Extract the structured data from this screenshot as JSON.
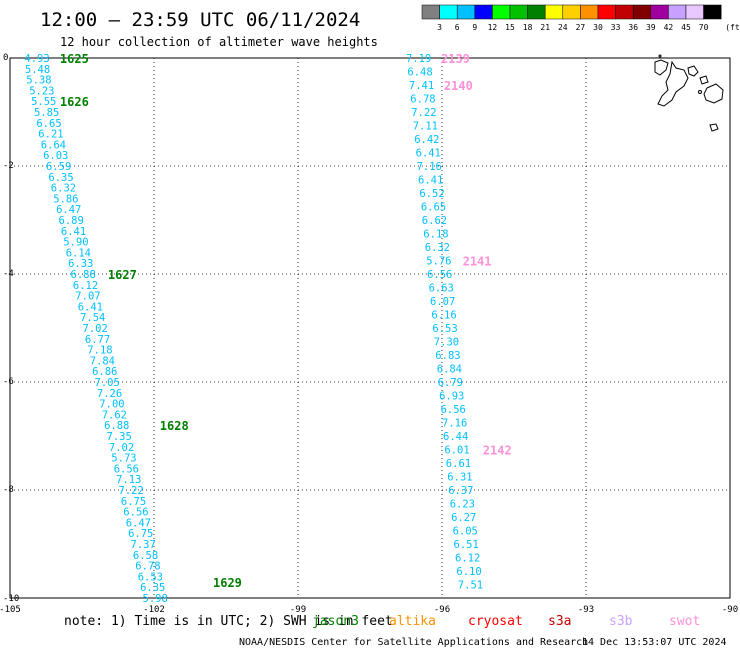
{
  "header": {
    "title": "12:00 – 23:59 UTC 06/11/2024",
    "subtitle": "12 hour collection of altimeter wave heights"
  },
  "legend": {
    "labels": [
      "3",
      "6",
      "9",
      "12",
      "15",
      "18",
      "21",
      "24",
      "27",
      "30",
      "33",
      "36",
      "39",
      "42",
      "45",
      "70"
    ],
    "unit": "(ft)",
    "colors": [
      "#808080",
      "#00ffff",
      "#00c0ff",
      "#0000ff",
      "#00ff00",
      "#00c000",
      "#008000",
      "#ffff00",
      "#ffd000",
      "#ff9000",
      "#ff0000",
      "#c00000",
      "#800000",
      "#a000a0",
      "#c8a0ff",
      "#e8c8ff",
      "#000000"
    ]
  },
  "chart_data": {
    "type": "scatter",
    "xlim": [
      -105,
      -90
    ],
    "ylim": [
      -10,
      0
    ],
    "xticks": [
      "-105",
      "-102",
      "-99",
      "-96",
      "-93",
      "-90"
    ],
    "yticks": [
      "0",
      "-2",
      "-4",
      "-6",
      "-8",
      "-10"
    ],
    "grid": true,
    "series": [
      {
        "track": "west",
        "color": "#00c0ff",
        "points": [
          {
            "lon": -104.7,
            "lat": 0.0,
            "swh": "4.93"
          },
          {
            "lon": -104.69,
            "lat": -0.2,
            "swh": "5.48"
          },
          {
            "lon": -104.66,
            "lat": -0.4,
            "swh": "5.38"
          },
          {
            "lon": -104.6,
            "lat": -0.6,
            "swh": "5.23"
          },
          {
            "lon": -104.56,
            "lat": -0.8,
            "swh": "5.55"
          },
          {
            "lon": -104.5,
            "lat": -1.0,
            "swh": "5.85"
          },
          {
            "lon": -104.45,
            "lat": -1.2,
            "swh": "6.65"
          },
          {
            "lon": -104.41,
            "lat": -1.4,
            "swh": "6.21"
          },
          {
            "lon": -104.36,
            "lat": -1.6,
            "swh": "6.64"
          },
          {
            "lon": -104.31,
            "lat": -1.8,
            "swh": "6.03"
          },
          {
            "lon": -104.25,
            "lat": -2.0,
            "swh": "6.59"
          },
          {
            "lon": -104.2,
            "lat": -2.2,
            "swh": "6.35"
          },
          {
            "lon": -104.15,
            "lat": -2.4,
            "swh": "6.32"
          },
          {
            "lon": -104.1,
            "lat": -2.6,
            "swh": "5.86"
          },
          {
            "lon": -104.04,
            "lat": -2.8,
            "swh": "6.47"
          },
          {
            "lon": -103.99,
            "lat": -3.0,
            "swh": "6.89"
          },
          {
            "lon": -103.94,
            "lat": -3.2,
            "swh": "6.41"
          },
          {
            "lon": -103.89,
            "lat": -3.4,
            "swh": "5.90"
          },
          {
            "lon": -103.84,
            "lat": -3.6,
            "swh": "6.14"
          },
          {
            "lon": -103.79,
            "lat": -3.8,
            "swh": "6.33"
          },
          {
            "lon": -103.74,
            "lat": -4.0,
            "swh": "6.88"
          },
          {
            "lon": -103.69,
            "lat": -4.2,
            "swh": "6.12"
          },
          {
            "lon": -103.64,
            "lat": -4.4,
            "swh": "7.07"
          },
          {
            "lon": -103.59,
            "lat": -4.6,
            "swh": "6.41"
          },
          {
            "lon": -103.54,
            "lat": -4.8,
            "swh": "7.54"
          },
          {
            "lon": -103.49,
            "lat": -5.0,
            "swh": "7.02"
          },
          {
            "lon": -103.44,
            "lat": -5.2,
            "swh": "6.77"
          },
          {
            "lon": -103.39,
            "lat": -5.4,
            "swh": "7.18"
          },
          {
            "lon": -103.34,
            "lat": -5.6,
            "swh": "7.84"
          },
          {
            "lon": -103.29,
            "lat": -5.8,
            "swh": "6.86"
          },
          {
            "lon": -103.24,
            "lat": -6.0,
            "swh": "7.05"
          },
          {
            "lon": -103.19,
            "lat": -6.2,
            "swh": "7.26"
          },
          {
            "lon": -103.14,
            "lat": -6.4,
            "swh": "7.00"
          },
          {
            "lon": -103.09,
            "lat": -6.6,
            "swh": "7.62"
          },
          {
            "lon": -103.04,
            "lat": -6.8,
            "swh": "6.88"
          },
          {
            "lon": -102.99,
            "lat": -7.0,
            "swh": "7.35"
          },
          {
            "lon": -102.94,
            "lat": -7.2,
            "swh": "7.02"
          },
          {
            "lon": -102.89,
            "lat": -7.4,
            "swh": "5.73"
          },
          {
            "lon": -102.84,
            "lat": -7.6,
            "swh": "6.56"
          },
          {
            "lon": -102.79,
            "lat": -7.8,
            "swh": "7.13"
          },
          {
            "lon": -102.74,
            "lat": -8.0,
            "swh": "7.22"
          },
          {
            "lon": -102.69,
            "lat": -8.2,
            "swh": "6.75"
          },
          {
            "lon": -102.64,
            "lat": -8.4,
            "swh": "6.56"
          },
          {
            "lon": -102.59,
            "lat": -8.6,
            "swh": "6.47"
          },
          {
            "lon": -102.54,
            "lat": -8.8,
            "swh": "6.75"
          },
          {
            "lon": -102.49,
            "lat": -9.0,
            "swh": "7.37"
          },
          {
            "lon": -102.44,
            "lat": -9.2,
            "swh": "6.58"
          },
          {
            "lon": -102.39,
            "lat": -9.4,
            "swh": "6.78"
          },
          {
            "lon": -102.34,
            "lat": -9.6,
            "swh": "6.53"
          },
          {
            "lon": -102.29,
            "lat": -9.8,
            "swh": "6.35"
          },
          {
            "lon": -102.24,
            "lat": -10.0,
            "swh": "5.98"
          }
        ]
      },
      {
        "track": "east",
        "color": "#00c0ff",
        "points": [
          {
            "lon": -96.75,
            "lat": 0.0,
            "swh": "7.19"
          },
          {
            "lon": -96.72,
            "lat": -0.25,
            "swh": "6.48"
          },
          {
            "lon": -96.69,
            "lat": -0.5,
            "swh": "7.41"
          },
          {
            "lon": -96.66,
            "lat": -0.75,
            "swh": "6.78"
          },
          {
            "lon": -96.64,
            "lat": -1.0,
            "swh": "7.22"
          },
          {
            "lon": -96.61,
            "lat": -1.25,
            "swh": "7.11"
          },
          {
            "lon": -96.58,
            "lat": -1.5,
            "swh": "6.42"
          },
          {
            "lon": -96.55,
            "lat": -1.75,
            "swh": "6.41"
          },
          {
            "lon": -96.53,
            "lat": -2.0,
            "swh": "7.16"
          },
          {
            "lon": -96.5,
            "lat": -2.25,
            "swh": "6.41"
          },
          {
            "lon": -96.47,
            "lat": -2.5,
            "swh": "6.52"
          },
          {
            "lon": -96.44,
            "lat": -2.75,
            "swh": "6.65"
          },
          {
            "lon": -96.42,
            "lat": -3.0,
            "swh": "6.62"
          },
          {
            "lon": -96.39,
            "lat": -3.25,
            "swh": "6.18"
          },
          {
            "lon": -96.36,
            "lat": -3.5,
            "swh": "6.32"
          },
          {
            "lon": -96.33,
            "lat": -3.75,
            "swh": "5.76"
          },
          {
            "lon": -96.31,
            "lat": -4.0,
            "swh": "6.56"
          },
          {
            "lon": -96.28,
            "lat": -4.25,
            "swh": "6.63"
          },
          {
            "lon": -96.25,
            "lat": -4.5,
            "swh": "6.07"
          },
          {
            "lon": -96.22,
            "lat": -4.75,
            "swh": "6.16"
          },
          {
            "lon": -96.2,
            "lat": -5.0,
            "swh": "6.53"
          },
          {
            "lon": -96.17,
            "lat": -5.25,
            "swh": "7.30"
          },
          {
            "lon": -96.14,
            "lat": -5.5,
            "swh": "6.83"
          },
          {
            "lon": -96.11,
            "lat": -5.75,
            "swh": "6.84"
          },
          {
            "lon": -96.09,
            "lat": -6.0,
            "swh": "6.79"
          },
          {
            "lon": -96.06,
            "lat": -6.25,
            "swh": "6.93"
          },
          {
            "lon": -96.03,
            "lat": -6.5,
            "swh": "6.56"
          },
          {
            "lon": -96.0,
            "lat": -6.75,
            "swh": "7.16"
          },
          {
            "lon": -95.98,
            "lat": -7.0,
            "swh": "6.44"
          },
          {
            "lon": -95.95,
            "lat": -7.25,
            "swh": "6.01"
          },
          {
            "lon": -95.92,
            "lat": -7.5,
            "swh": "6.61"
          },
          {
            "lon": -95.89,
            "lat": -7.75,
            "swh": "6.31"
          },
          {
            "lon": -95.87,
            "lat": -8.0,
            "swh": "6.37"
          },
          {
            "lon": -95.84,
            "lat": -8.25,
            "swh": "6.23"
          },
          {
            "lon": -95.81,
            "lat": -8.5,
            "swh": "6.27"
          },
          {
            "lon": -95.78,
            "lat": -8.75,
            "swh": "6.05"
          },
          {
            "lon": -95.76,
            "lat": -9.0,
            "swh": "6.51"
          },
          {
            "lon": -95.73,
            "lat": -9.25,
            "swh": "6.12"
          },
          {
            "lon": -95.7,
            "lat": -9.5,
            "swh": "6.10"
          },
          {
            "lon": -95.67,
            "lat": -9.75,
            "swh": "7.51"
          }
        ]
      }
    ],
    "pass_labels": [
      {
        "text": "1625",
        "lon": -103.96,
        "lat": 0.0,
        "color": "#008000"
      },
      {
        "text": "1626",
        "lon": -103.96,
        "lat": -0.8,
        "color": "#008000"
      },
      {
        "text": "1627",
        "lon": -102.96,
        "lat": -4.0,
        "color": "#008000"
      },
      {
        "text": "1628",
        "lon": -101.88,
        "lat": -6.8,
        "color": "#008000"
      },
      {
        "text": "1629",
        "lon": -100.77,
        "lat": -9.7,
        "color": "#008000"
      },
      {
        "text": "2139",
        "lon": -96.02,
        "lat": 0.0,
        "color": "#ff90d8"
      },
      {
        "text": "2140",
        "lon": -95.96,
        "lat": -0.5,
        "color": "#ff90d8"
      },
      {
        "text": "2141",
        "lon": -95.57,
        "lat": -3.75,
        "color": "#ff90d8"
      },
      {
        "text": "2142",
        "lon": -95.15,
        "lat": -7.25,
        "color": "#ff90d8"
      }
    ]
  },
  "note": {
    "text": "note: 1) Time is in UTC; 2) SWH is in feet",
    "satellites": [
      {
        "name": "jason3",
        "color": "#008000"
      },
      {
        "name": "altika",
        "color": "#ff9000"
      },
      {
        "name": "cryosat",
        "color": "#ff0000"
      },
      {
        "name": "s3a",
        "color": "#c00000"
      },
      {
        "name": "s3b",
        "color": "#c8a0ff"
      },
      {
        "name": "swot",
        "color": "#ff90d8"
      }
    ]
  },
  "footer": {
    "credit": "NOAA/NESDIS Center for Satellite Applications and Research",
    "timestamp": "14 Dec 13:53:07 UTC 2024"
  }
}
